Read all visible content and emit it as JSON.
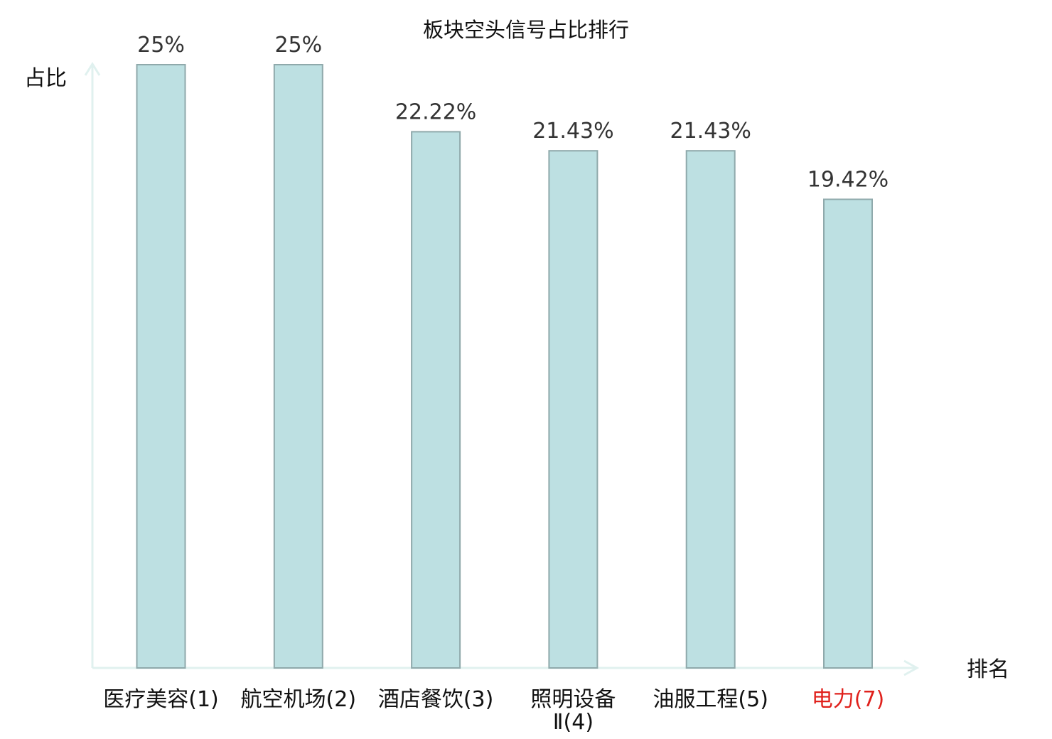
{
  "chart_data": {
    "type": "bar",
    "title": "板块空头信号占比排行",
    "ylabel": "占比",
    "xlabel": "排名",
    "categories": [
      "医疗美容(1)",
      "航空机场(2)",
      "酒店餐饮(3)",
      "照明设备Ⅱ(4)",
      "油服工程(5)",
      "电力(7)"
    ],
    "values": [
      25,
      25,
      22.22,
      21.43,
      21.43,
      19.42
    ],
    "value_labels": [
      "25%",
      "25%",
      "22.22%",
      "21.43%",
      "21.43%",
      "19.42%"
    ],
    "highlight_category": "电力(7)",
    "ylim": [
      0,
      25
    ],
    "grid": false,
    "colors": {
      "bar_fill": "#bde0e2",
      "bar_stroke": "#8fa9ab",
      "axis": "#e0f1ef",
      "highlight_text": "#e0211c",
      "text": "#111111",
      "value_text": "#333333"
    }
  }
}
